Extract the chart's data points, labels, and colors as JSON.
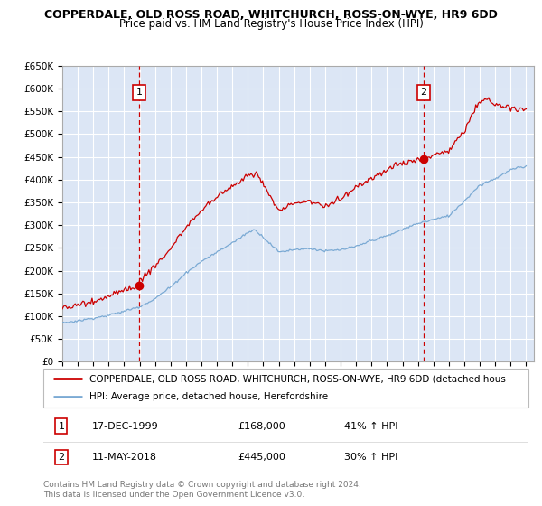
{
  "title": "COPPERDALE, OLD ROSS ROAD, WHITCHURCH, ROSS-ON-WYE, HR9 6DD",
  "subtitle": "Price paid vs. HM Land Registry's House Price Index (HPI)",
  "ylabel_ticks": [
    "£0",
    "£50K",
    "£100K",
    "£150K",
    "£200K",
    "£250K",
    "£300K",
    "£350K",
    "£400K",
    "£450K",
    "£500K",
    "£550K",
    "£600K",
    "£650K"
  ],
  "ytick_values": [
    0,
    50000,
    100000,
    150000,
    200000,
    250000,
    300000,
    350000,
    400000,
    450000,
    500000,
    550000,
    600000,
    650000
  ],
  "ylim": [
    0,
    650000
  ],
  "xlim_start": 1995.0,
  "xlim_end": 2025.5,
  "plot_bg_color": "#DCE6F5",
  "grid_color": "#FFFFFF",
  "red_line_color": "#CC0000",
  "blue_line_color": "#7BAAD4",
  "vline_color": "#CC0000",
  "sale1_x": 1999.96,
  "sale1_y": 168000,
  "sale2_x": 2018.37,
  "sale2_y": 445000,
  "legend_line1": "COPPERDALE, OLD ROSS ROAD, WHITCHURCH, ROSS-ON-WYE, HR9 6DD (detached hous",
  "legend_line2": "HPI: Average price, detached house, Herefordshire",
  "table_row1": [
    "1",
    "17-DEC-1999",
    "£168,000",
    "41% ↑ HPI"
  ],
  "table_row2": [
    "2",
    "11-MAY-2018",
    "£445,000",
    "30% ↑ HPI"
  ],
  "footnote": "Contains HM Land Registry data © Crown copyright and database right 2024.\nThis data is licensed under the Open Government Licence v3.0.",
  "title_fontsize": 9,
  "subtitle_fontsize": 8.5
}
